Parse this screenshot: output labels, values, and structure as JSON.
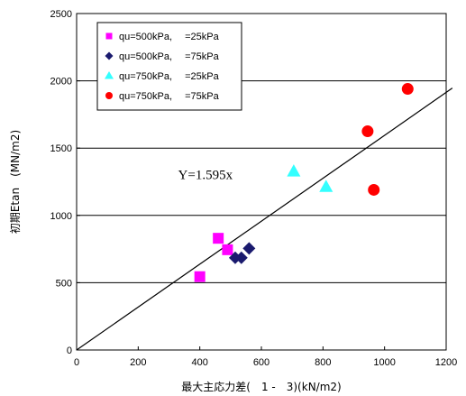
{
  "chart_data": {
    "type": "scatter",
    "xlabel": "最大主応力差(　1 -　3)(kN/m2)",
    "ylabel": "初期Etan　(MN/m2)",
    "xlim": [
      0,
      1200
    ],
    "ylim": [
      0,
      2500
    ],
    "x_ticks": [
      0,
      200,
      400,
      600,
      800,
      1000,
      1200
    ],
    "y_ticks": [
      0,
      500,
      1000,
      1500,
      2000,
      2500
    ],
    "grid": "horizontal",
    "legend_placement": "top-left",
    "series": [
      {
        "name": "qu=500kPa,　 =25kPa",
        "marker": "square",
        "color": "#ff00ff",
        "points": [
          [
            400,
            545
          ],
          [
            460,
            830
          ],
          [
            490,
            745
          ]
        ]
      },
      {
        "name": "qu=500kPa,　 =75kPa",
        "marker": "diamond",
        "color": "#1a1a6e",
        "points": [
          [
            515,
            685
          ],
          [
            535,
            685
          ],
          [
            560,
            755
          ]
        ]
      },
      {
        "name": "qu=750kPa,　 =25kPa",
        "marker": "triangle",
        "color": "#33ffff",
        "points": [
          [
            705,
            1330
          ],
          [
            810,
            1215
          ]
        ]
      },
      {
        "name": "qu=750kPa,　 =75kPa",
        "marker": "circle",
        "color": "#ff0000",
        "points": [
          [
            945,
            1625
          ],
          [
            965,
            1190
          ],
          [
            1075,
            1940
          ]
        ]
      }
    ],
    "fit_line": {
      "slope": 1.595,
      "x_range": [
        0,
        1220
      ],
      "label": "Y=1.595x",
      "label_at": [
        505,
        1270
      ]
    }
  }
}
